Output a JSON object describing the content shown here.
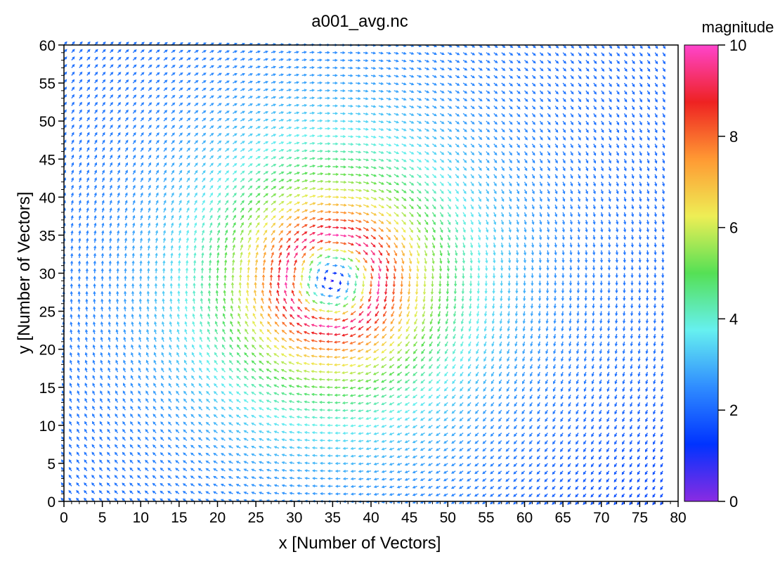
{
  "chart_data": {
    "type": "quiver",
    "title": "a001_avg.nc",
    "xlabel": "x  [Number of Vectors]",
    "ylabel": "y  [Number of Vectors]",
    "xlim": [
      0,
      80
    ],
    "ylim": [
      0,
      60
    ],
    "xticks": [
      "0",
      "5",
      "10",
      "15",
      "20",
      "25",
      "30",
      "35",
      "40",
      "45",
      "50",
      "55",
      "60",
      "65",
      "70",
      "75",
      "80"
    ],
    "yticks": [
      "0",
      "5",
      "10",
      "15",
      "20",
      "25",
      "30",
      "35",
      "40",
      "45",
      "50",
      "55",
      "60"
    ],
    "grid": false,
    "field": {
      "description_kind": "vortex",
      "vortex_center": [
        35,
        29
      ],
      "rotation": "clockwise",
      "core_radius": 3,
      "peak_magnitude": 9.8,
      "peak_radius": 6,
      "far_field_magnitude": 2,
      "nx": 79,
      "ny": 61,
      "x_range": [
        0,
        78
      ],
      "y_range": [
        0,
        60
      ]
    },
    "colorbar": {
      "label": "magnitude",
      "min": 0,
      "max": 10,
      "ticks": [
        "0",
        "2",
        "4",
        "6",
        "8",
        "10"
      ],
      "colors": [
        "#8a2be2",
        "#0033ff",
        "#2f8cff",
        "#66f0f0",
        "#55e055",
        "#eeee55",
        "#ff9933",
        "#ee2222",
        "#ff44cc"
      ]
    }
  }
}
